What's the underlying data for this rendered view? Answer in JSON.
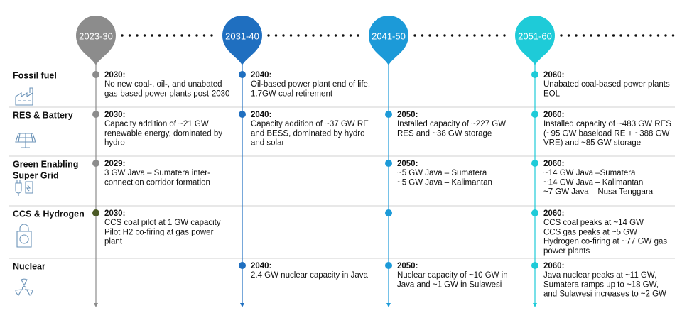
{
  "columns": [
    {
      "label": "2023-30",
      "color": "#8c8c8c"
    },
    {
      "label": "2031-40",
      "color": "#1f6fc0"
    },
    {
      "label": "2041-50",
      "color": "#1c9ad8"
    },
    {
      "label": "2051-60",
      "color": "#1ecbd8"
    }
  ],
  "rows": [
    {
      "label": [
        "Fossil fuel"
      ],
      "cells": [
        {
          "year": "2030:",
          "lines": [
            "No new coal-, oil-, and unabated",
            "gas-based power plants post-2030"
          ]
        },
        {
          "year": "2040:",
          "lines": [
            "Oil-based power plant end of life,",
            "1.7GW coal retirement"
          ]
        },
        null,
        {
          "year": "2060:",
          "lines": [
            "Unabated coal-based power plants",
            "EOL"
          ]
        }
      ]
    },
    {
      "label": [
        "RES & Battery"
      ],
      "cells": [
        {
          "year": "2030:",
          "lines": [
            "Capacity addition of ~21 GW",
            "renewable energy, dominated by",
            "hydro"
          ]
        },
        {
          "year": "2040:",
          "lines": [
            "Capacity addition of ~37 GW RE",
            "and BESS, dominated by hydro",
            "and solar"
          ]
        },
        {
          "year": "2050:",
          "lines": [
            "Installed capacity of ~227 GW",
            "RES and ~38 GW storage"
          ]
        },
        {
          "year": "2060:",
          "lines": [
            "Installed capacity of ~483 GW RES",
            "(~95 GW baseload RE + ~388 GW",
            "VRE) and ~85 GW storage"
          ]
        }
      ]
    },
    {
      "label": [
        "Green Enabling",
        "Super Grid"
      ],
      "cells": [
        {
          "year": "2029:",
          "lines": [
            "3 GW Java – Sumatera inter-",
            "connection corridor formation"
          ]
        },
        null,
        {
          "year": "2050:",
          "lines": [
            "~5 GW Java – Sumatera",
            "~5 GW Java – Kalimantan"
          ]
        },
        {
          "year": "2060:",
          "lines": [
            "~14 GW Java –Sumatera",
            "~14 GW Java – Kalimantan",
            "~7 GW Java – Nusa Tenggara"
          ]
        }
      ]
    },
    {
      "label": [
        "CCS & Hydrogen"
      ],
      "cells": [
        {
          "year": "2030:",
          "lines": [
            "CCS coal pilot at 1 GW capacity",
            "Pilot H2 co-firing at gas power",
            "plant"
          ]
        },
        null,
        null,
        {
          "year": "2060:",
          "lines": [
            "CCS coal peaks at ~14 GW",
            "CCS gas peaks at ~5 GW",
            "Hydrogen co-firing at ~77 GW gas",
            "power plants"
          ]
        }
      ]
    },
    {
      "label": [
        "Nuclear"
      ],
      "cells": [
        null,
        {
          "year": "2040:",
          "lines": [
            "2.4 GW nuclear capacity in Java"
          ]
        },
        {
          "year": "2050:",
          "lines": [
            "Nuclear capacity of ~10 GW in",
            "Java and ~1 GW in Sulawesi"
          ]
        },
        {
          "year": "2060:",
          "lines": [
            "Java nuclear peaks at ~11 GW,",
            "Sumatera ramps up to ~18 GW,",
            "and Sulawesi increases to ~2 GW"
          ]
        }
      ]
    }
  ]
}
